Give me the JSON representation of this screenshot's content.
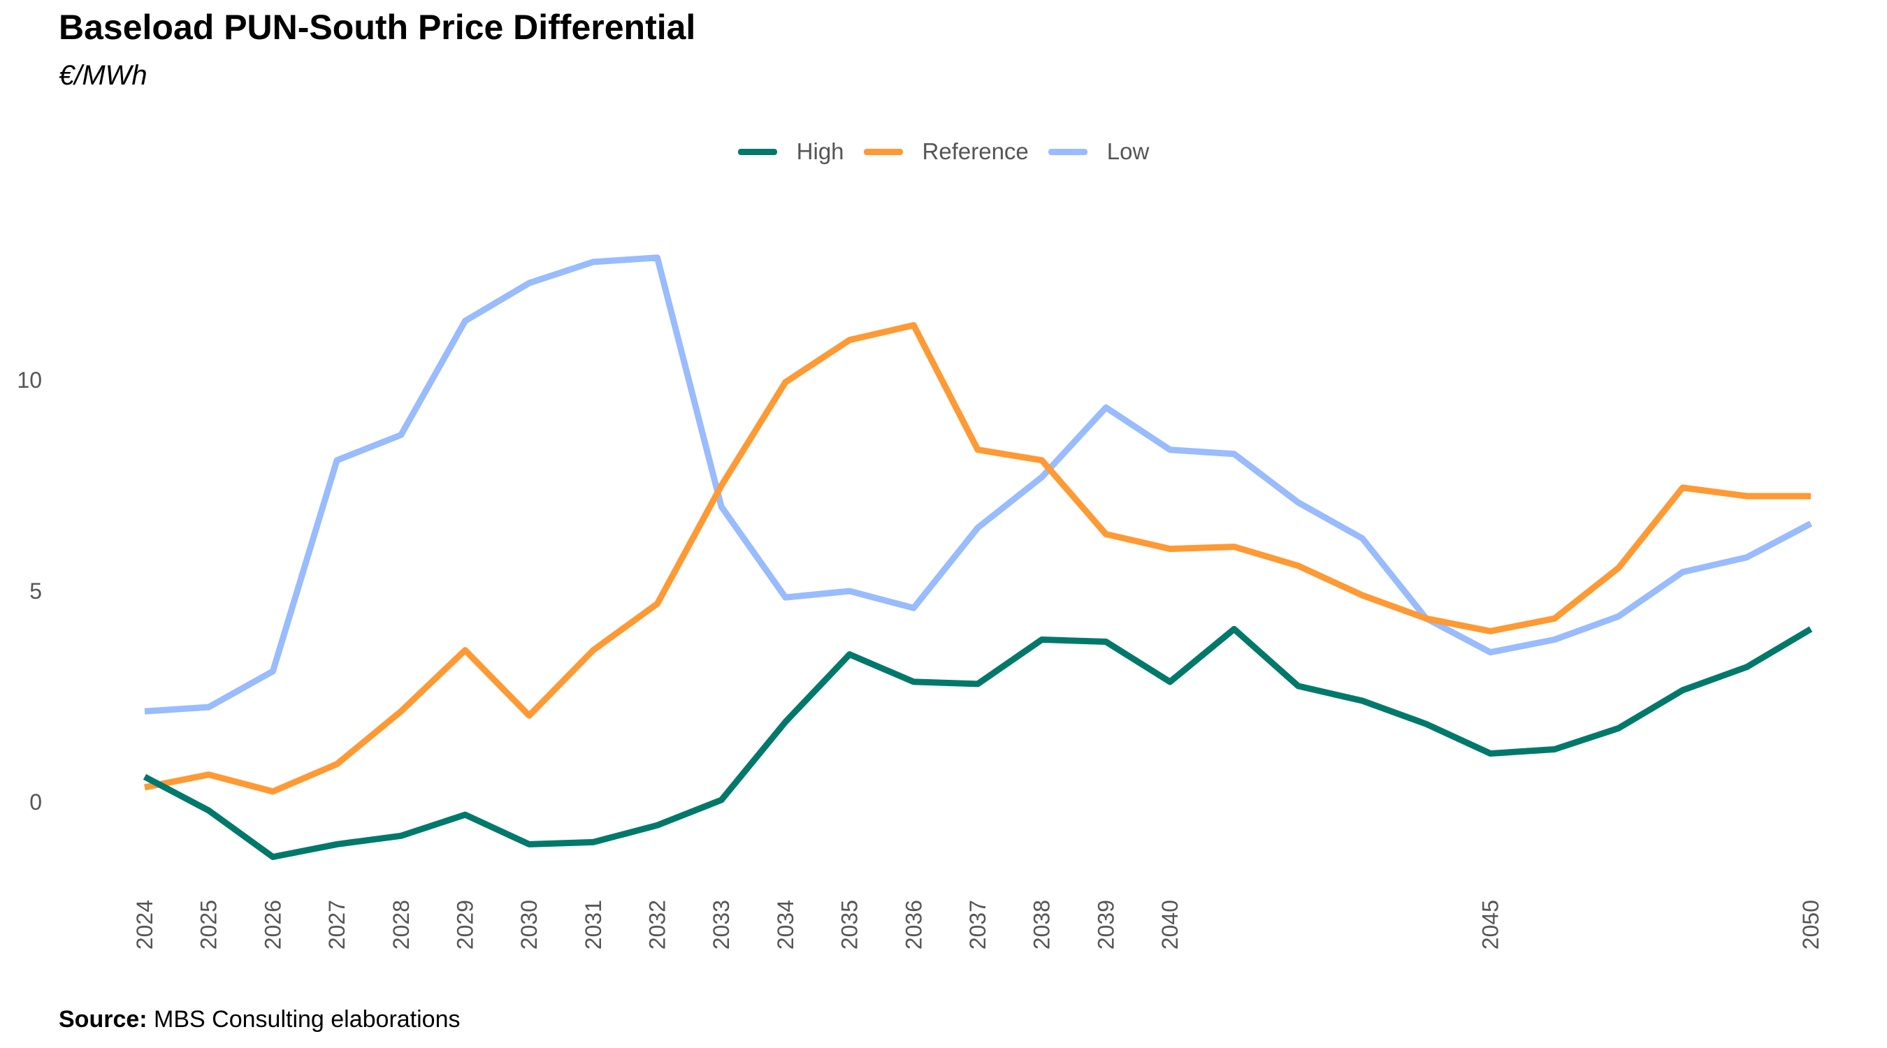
{
  "header": {
    "title": "Baseload PUN-South Price Differential",
    "subtitle": "€/MWh"
  },
  "footer": {
    "source_label": "Source:",
    "source_text": " MBS Consulting elaborations"
  },
  "chart_data": {
    "type": "line",
    "title": "Baseload PUN-South Price Differential",
    "subtitle": "€/MWh",
    "xlabel": "",
    "ylabel": "",
    "x": [
      2024,
      2025,
      2026,
      2027,
      2028,
      2029,
      2030,
      2031,
      2032,
      2033,
      2034,
      2035,
      2036,
      2037,
      2038,
      2039,
      2040,
      2041,
      2042,
      2043,
      2044,
      2045,
      2046,
      2047,
      2048,
      2049,
      2050
    ],
    "x_tick_labels": [
      "2024",
      "2025",
      "2026",
      "2027",
      "2028",
      "2029",
      "2030",
      "2031",
      "2032",
      "2033",
      "2034",
      "2035",
      "2036",
      "2037",
      "2038",
      "2039",
      "2040",
      "2045",
      "2050"
    ],
    "y_ticks": [
      0,
      5,
      10
    ],
    "ylim": [
      -2.2,
      13.5
    ],
    "xlim": [
      2024,
      2050
    ],
    "grid": false,
    "legend_position": "top-center",
    "series": [
      {
        "name": "High",
        "color": "#00796b",
        "values": [
          0.6,
          -0.2,
          -1.3,
          -1.0,
          -0.8,
          -0.3,
          -1.0,
          -0.95,
          -0.55,
          0.05,
          1.9,
          3.5,
          2.85,
          2.8,
          3.85,
          3.8,
          2.85,
          4.1,
          2.75,
          2.4,
          1.85,
          1.15,
          1.25,
          1.75,
          2.65,
          3.2,
          4.1
        ]
      },
      {
        "name": "Reference",
        "color": "#ff9933",
        "values": [
          0.35,
          0.65,
          0.25,
          0.9,
          2.15,
          3.6,
          2.05,
          3.6,
          4.7,
          7.5,
          9.95,
          10.95,
          11.3,
          8.35,
          8.1,
          6.35,
          6.0,
          6.05,
          5.6,
          4.9,
          4.35,
          4.05,
          4.35,
          5.55,
          7.45,
          7.25,
          7.25
        ]
      },
      {
        "name": "Low",
        "color": "#99bbff",
        "values": [
          2.15,
          2.25,
          3.1,
          8.1,
          8.7,
          11.4,
          12.3,
          12.8,
          12.9,
          7.0,
          4.85,
          5.0,
          4.6,
          6.5,
          7.7,
          9.35,
          8.35,
          8.25,
          7.1,
          6.25,
          4.35,
          3.55,
          3.85,
          4.4,
          5.45,
          5.8,
          6.6
        ]
      }
    ]
  }
}
